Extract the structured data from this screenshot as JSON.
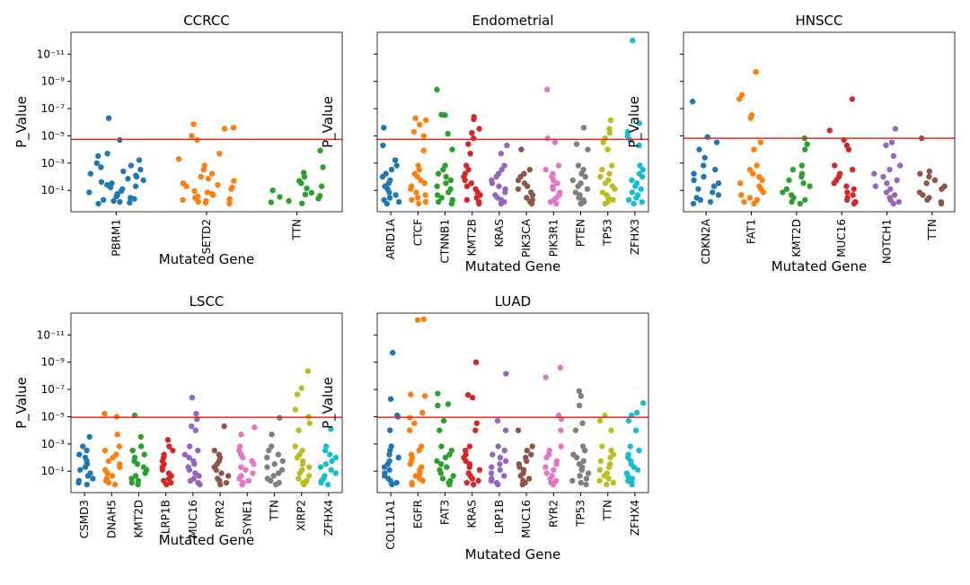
{
  "chart_data": [
    {
      "type": "strip",
      "title": "CCRCC",
      "xlabel": "Mutated Gene",
      "ylabel": "P_Value",
      "log_y": true,
      "ylim": [
        3.7,
        2.5e-13
      ],
      "yticks": [
        {
          "value": 1e-11,
          "label": "10⁻¹¹"
        },
        {
          "value": 1e-09,
          "label": "10⁻⁹"
        },
        {
          "value": 1e-07,
          "label": "10⁻⁷"
        },
        {
          "value": 1e-05,
          "label": "10⁻⁵"
        },
        {
          "value": 0.001,
          "label": "10⁻³"
        },
        {
          "value": 0.1,
          "label": "10⁻¹"
        }
      ],
      "threshold": 1.8e-05,
      "threshold_color": "#e8281f",
      "categories": [
        "PBRM1",
        "SETD2",
        "TTN"
      ],
      "colors": [
        "#1f77b4",
        "#ff7f0e",
        "#2ca02c"
      ],
      "values": [
        [
          0.95,
          0.8,
          0.7,
          0.6,
          0.5,
          0.42,
          0.35,
          0.28,
          0.22,
          0.18,
          0.14,
          0.11,
          0.08,
          0.06,
          0.05,
          0.04,
          0.03,
          0.024,
          0.018,
          0.014,
          0.01,
          0.008,
          0.006,
          0.004,
          0.003,
          0.002,
          0.0015,
          0.001,
          0.0006,
          0.0003,
          0.0002,
          2e-05,
          5e-07
        ],
        [
          0.95,
          0.8,
          0.7,
          0.6,
          0.5,
          0.42,
          0.35,
          0.28,
          0.22,
          0.18,
          0.14,
          0.11,
          0.08,
          0.06,
          0.05,
          0.04,
          0.03,
          0.02,
          0.014,
          0.01,
          0.006,
          0.003,
          0.0015,
          0.0005,
          0.0002,
          2e-05,
          1e-05,
          3e-06,
          2.5e-06,
          1.4e-06
        ],
        [
          0.9,
          0.75,
          0.6,
          0.4,
          0.3,
          0.25,
          0.2,
          0.15,
          0.1,
          0.07,
          0.05,
          0.03,
          0.02,
          0.01,
          0.005,
          0.002,
          0.00012
        ]
      ]
    },
    {
      "type": "strip",
      "title": "Endometrial",
      "xlabel": "Mutated Gene",
      "ylabel": "P_Value",
      "log_y": true,
      "ylim": [
        3.7,
        2.5e-13
      ],
      "yticks": [
        1e-11,
        1e-09,
        1e-07,
        1e-05,
        0.001,
        0.1
      ],
      "threshold": 1.8e-05,
      "threshold_color": "#e8281f",
      "categories": [
        "ARID1A",
        "CTCF",
        "CTNNB1",
        "KMT2B",
        "KRAS",
        "PIK3CA",
        "PIK3R1",
        "PTEN",
        "TP53",
        "ZFHX3"
      ],
      "colors": [
        "#1f77b4",
        "#ff7f0e",
        "#2ca02c",
        "#d62728",
        "#9467bd",
        "#8c564b",
        "#e377c2",
        "#7f7f7f",
        "#bcbd22",
        "#17becf"
      ],
      "values": [
        [
          0.95,
          0.7,
          0.5,
          0.35,
          0.22,
          0.14,
          0.08,
          0.05,
          0.03,
          0.018,
          0.01,
          0.006,
          0.003,
          0.0015,
          0.0006,
          5e-05,
          2.5e-06
        ],
        [
          0.95,
          0.7,
          0.5,
          0.35,
          0.22,
          0.14,
          0.08,
          0.05,
          0.03,
          0.018,
          0.01,
          0.006,
          0.003,
          0.0015,
          0.00012,
          1e-05,
          5e-06,
          1.5e-06,
          7e-07,
          5e-07
        ],
        [
          0.95,
          0.7,
          0.5,
          0.35,
          0.22,
          0.14,
          0.08,
          0.05,
          0.03,
          0.018,
          0.01,
          0.006,
          0.003,
          0.0015,
          0.0001,
          7e-06,
          3e-07,
          2.8e-07,
          4e-09
        ],
        [
          0.95,
          0.7,
          0.5,
          0.35,
          0.22,
          0.14,
          0.08,
          0.05,
          0.03,
          0.018,
          0.01,
          0.006,
          0.003,
          0.0015,
          0.0002,
          4e-05,
          1.5e-05,
          6e-06,
          3e-06,
          6e-07,
          4e-07
        ],
        [
          0.95,
          0.7,
          0.5,
          0.35,
          0.22,
          0.14,
          0.08,
          0.05,
          0.03,
          0.018,
          0.01,
          0.006,
          0.003,
          0.0015,
          0.0002,
          5e-05
        ],
        [
          0.95,
          0.7,
          0.5,
          0.35,
          0.22,
          0.14,
          0.08,
          0.05,
          0.03,
          0.018,
          0.01,
          0.006,
          0.003,
          0.0001
        ],
        [
          0.95,
          0.7,
          0.5,
          0.35,
          0.22,
          0.14,
          0.08,
          0.05,
          0.03,
          0.018,
          0.01,
          0.006,
          0.003,
          0.0015,
          3e-05,
          1.5e-05,
          4e-09
        ],
        [
          0.95,
          0.7,
          0.5,
          0.35,
          0.22,
          0.14,
          0.08,
          0.05,
          0.03,
          0.018,
          0.01,
          0.006,
          0.003,
          0.0015,
          0.0001,
          4e-05,
          2.5e-06
        ],
        [
          0.95,
          0.7,
          0.5,
          0.35,
          0.22,
          0.14,
          0.08,
          0.05,
          0.03,
          0.018,
          0.01,
          0.006,
          0.003,
          0.0015,
          0.0001,
          3e-05,
          1.5e-05,
          6e-06,
          3e-06,
          7e-07
        ],
        [
          0.95,
          0.7,
          0.5,
          0.35,
          0.22,
          0.14,
          0.08,
          0.05,
          0.03,
          0.018,
          0.01,
          0.006,
          0.003,
          0.0015,
          5e-05,
          2e-05,
          1e-05,
          5e-06,
          1.2e-06,
          1e-12
        ]
      ]
    },
    {
      "type": "strip",
      "title": "HNSCC",
      "xlabel": "Mutated Gene",
      "ylabel": "P_Value",
      "log_y": true,
      "ylim": [
        3.7,
        2.5e-13
      ],
      "yticks": [
        1e-11,
        1e-09,
        1e-07,
        1e-05,
        0.001,
        0.1
      ],
      "threshold": 1.5e-05,
      "threshold_color": "#e8281f",
      "categories": [
        "CDKN2A",
        "FAT1",
        "KMT2D",
        "MUC16",
        "NOTCH1",
        "TTN"
      ],
      "colors": [
        "#1f77b4",
        "#ff7f0e",
        "#2ca02c",
        "#d62728",
        "#9467bd",
        "#8c564b"
      ],
      "values": [
        [
          0.95,
          0.7,
          0.5,
          0.35,
          0.22,
          0.14,
          0.08,
          0.05,
          0.03,
          0.018,
          0.01,
          0.006,
          0.003,
          0.0015,
          0.0004,
          0.0001,
          3e-05,
          1.2e-05,
          3e-08
        ],
        [
          0.95,
          0.7,
          0.5,
          0.35,
          0.22,
          0.14,
          0.08,
          0.05,
          0.03,
          0.018,
          0.01,
          0.006,
          0.003,
          0.0015,
          0.0001,
          3e-05,
          5e-07,
          3e-07,
          2e-08,
          1e-08,
          2e-10
        ],
        [
          0.95,
          0.7,
          0.5,
          0.35,
          0.22,
          0.14,
          0.08,
          0.05,
          0.03,
          0.018,
          0.01,
          0.006,
          0.003,
          0.0015,
          0.0001,
          4e-05,
          1.5e-05
        ],
        [
          0.95,
          0.7,
          0.5,
          0.35,
          0.22,
          0.14,
          0.08,
          0.05,
          0.03,
          0.018,
          0.01,
          0.006,
          0.003,
          0.0015,
          0.0001,
          5e-05,
          2e-05,
          4e-06,
          2e-08
        ],
        [
          0.95,
          0.7,
          0.5,
          0.35,
          0.22,
          0.14,
          0.08,
          0.05,
          0.03,
          0.018,
          0.01,
          0.006,
          0.003,
          0.0015,
          0.0003,
          5e-05,
          3e-05,
          3e-06
        ],
        [
          0.95,
          0.7,
          0.5,
          0.35,
          0.22,
          0.14,
          0.08,
          0.05,
          0.03,
          0.018,
          0.01,
          0.006,
          0.004,
          1.5e-05
        ]
      ]
    },
    {
      "type": "strip",
      "title": "LSCC",
      "xlabel": "Mutated Gene",
      "ylabel": "P_Value",
      "log_y": true,
      "ylim": [
        3.7,
        2.5e-13
      ],
      "yticks": [
        {
          "value": 1e-11,
          "label": "10⁻¹¹"
        },
        {
          "value": 1e-09,
          "label": "10⁻⁹"
        },
        {
          "value": 1e-07,
          "label": "10⁻⁷"
        },
        {
          "value": 1e-05,
          "label": "10⁻⁵"
        },
        {
          "value": 0.001,
          "label": "10⁻³"
        },
        {
          "value": 0.1,
          "label": "10⁻¹"
        }
      ],
      "threshold": 1.1e-05,
      "threshold_color": "#e8281f",
      "categories": [
        "CSMD3",
        "DNAH5",
        "KMT2D",
        "LRP1B",
        "MUC16",
        "RYR2",
        "SYNE1",
        "TTN",
        "XIRP2",
        "ZFHX4"
      ],
      "colors": [
        "#1f77b4",
        "#ff7f0e",
        "#2ca02c",
        "#d62728",
        "#9467bd",
        "#8c564b",
        "#e377c2",
        "#7f7f7f",
        "#bcbd22",
        "#17becf"
      ],
      "values": [
        [
          0.95,
          0.7,
          0.5,
          0.35,
          0.22,
          0.14,
          0.08,
          0.05,
          0.03,
          0.018,
          0.01,
          0.006,
          0.003,
          0.0015,
          0.0003
        ],
        [
          0.95,
          0.7,
          0.5,
          0.35,
          0.22,
          0.14,
          0.08,
          0.05,
          0.03,
          0.018,
          0.01,
          0.006,
          0.003,
          0.0015,
          0.0002,
          1e-05,
          6e-06
        ],
        [
          0.95,
          0.7,
          0.5,
          0.35,
          0.22,
          0.14,
          0.08,
          0.05,
          0.03,
          0.018,
          0.01,
          0.006,
          0.003,
          0.0015,
          0.0003,
          8e-06
        ],
        [
          0.95,
          0.7,
          0.5,
          0.35,
          0.22,
          0.14,
          0.08,
          0.05,
          0.03,
          0.018,
          0.01,
          0.006,
          0.003,
          0.0015,
          0.0005
        ],
        [
          0.95,
          0.7,
          0.5,
          0.35,
          0.22,
          0.14,
          0.08,
          0.05,
          0.03,
          0.018,
          0.01,
          0.006,
          0.003,
          0.0015,
          0.0001,
          5e-05,
          1.5e-05,
          6e-06,
          4e-07
        ],
        [
          0.95,
          0.7,
          0.5,
          0.35,
          0.22,
          0.14,
          0.08,
          0.05,
          0.03,
          0.018,
          0.01,
          0.006,
          0.003,
          5e-05
        ],
        [
          0.95,
          0.7,
          0.5,
          0.35,
          0.22,
          0.14,
          0.08,
          0.05,
          0.03,
          0.018,
          0.01,
          0.006,
          0.003,
          0.0015,
          0.0002,
          6e-05
        ],
        [
          0.95,
          0.7,
          0.5,
          0.35,
          0.22,
          0.14,
          0.08,
          0.05,
          0.03,
          0.018,
          0.01,
          0.006,
          0.003,
          0.0015,
          0.0002,
          1.2e-05
        ],
        [
          0.95,
          0.7,
          0.5,
          0.35,
          0.22,
          0.14,
          0.08,
          0.05,
          0.03,
          0.018,
          0.01,
          0.006,
          0.003,
          0.0015,
          0.0001,
          3e-05,
          1e-05,
          3e-06,
          2.3e-07,
          8e-08,
          4.5e-09
        ],
        [
          0.95,
          0.7,
          0.5,
          0.35,
          0.22,
          0.14,
          0.08,
          0.05,
          0.03,
          0.018,
          0.01,
          0.006,
          0.003,
          0.0015,
          8e-05
        ]
      ]
    },
    {
      "type": "strip",
      "title": "LUAD",
      "xlabel": "Mutated Gene",
      "ylabel": "P_Value",
      "log_y": true,
      "ylim": [
        3.7,
        2.5e-13
      ],
      "yticks": [
        1e-11,
        1e-09,
        1e-07,
        1e-05,
        0.001,
        0.1
      ],
      "threshold": 1.1e-05,
      "threshold_color": "#e8281f",
      "categories": [
        "COL11A1",
        "EGFR",
        "FAT3",
        "KRAS",
        "LRP1B",
        "MUC16",
        "RYR2",
        "TP53",
        "TTN",
        "ZFHX4"
      ],
      "colors": [
        "#1f77b4",
        "#ff7f0e",
        "#2ca02c",
        "#d62728",
        "#9467bd",
        "#8c564b",
        "#e377c2",
        "#7f7f7f",
        "#bcbd22",
        "#17becf"
      ],
      "values": [
        [
          0.95,
          0.7,
          0.5,
          0.35,
          0.22,
          0.14,
          0.08,
          0.05,
          0.03,
          0.018,
          0.01,
          0.006,
          0.003,
          0.0015,
          0.0001,
          1e-05,
          8e-06,
          5e-07,
          2e-10
        ],
        [
          0.95,
          0.7,
          0.5,
          0.35,
          0.22,
          0.14,
          0.08,
          0.05,
          0.03,
          0.018,
          0.01,
          0.006,
          0.003,
          0.0015,
          0.0001,
          3e-05,
          1.2e-05,
          5e-06,
          3e-07,
          2.3e-07,
          8e-13,
          7e-13
        ],
        [
          0.95,
          0.7,
          0.5,
          0.35,
          0.22,
          0.14,
          0.08,
          0.05,
          0.03,
          0.018,
          0.01,
          0.006,
          0.003,
          0.0015,
          0.0001,
          2e-05,
          1.5e-06,
          1.2e-06,
          2e-07
        ],
        [
          0.95,
          0.7,
          0.5,
          0.35,
          0.22,
          0.14,
          0.08,
          0.05,
          0.03,
          0.018,
          0.01,
          0.006,
          0.003,
          0.0015,
          0.0001,
          3e-05,
          4e-07,
          2.5e-07,
          1e-09
        ],
        [
          0.95,
          0.7,
          0.5,
          0.35,
          0.22,
          0.14,
          0.08,
          0.05,
          0.03,
          0.018,
          0.01,
          0.006,
          0.003,
          0.0015,
          0.0001,
          2e-05,
          7e-09
        ],
        [
          0.95,
          0.7,
          0.5,
          0.35,
          0.22,
          0.14,
          0.08,
          0.05,
          0.03,
          0.018,
          0.01,
          0.006,
          0.003,
          0.0015,
          0.0001
        ],
        [
          0.95,
          0.7,
          0.5,
          0.35,
          0.22,
          0.14,
          0.08,
          0.05,
          0.03,
          0.018,
          0.01,
          0.006,
          0.003,
          0.0015,
          0.0001,
          1.5e-05,
          8e-06,
          1.3e-08,
          2.5e-09
        ],
        [
          0.95,
          0.7,
          0.5,
          0.35,
          0.22,
          0.14,
          0.08,
          0.05,
          0.03,
          0.018,
          0.01,
          0.006,
          0.003,
          0.0015,
          0.0001,
          3e-05,
          1.5e-06,
          3e-07,
          1.3e-07
        ],
        [
          0.95,
          0.7,
          0.5,
          0.35,
          0.22,
          0.14,
          0.08,
          0.05,
          0.03,
          0.018,
          0.01,
          0.006,
          0.003,
          0.0015,
          0.0001,
          2e-05,
          8e-06
        ],
        [
          0.95,
          0.7,
          0.5,
          0.35,
          0.22,
          0.14,
          0.08,
          0.05,
          0.03,
          0.018,
          0.01,
          0.006,
          0.003,
          0.0015,
          0.0001,
          2e-05,
          8e-06,
          5e-06,
          1e-06
        ]
      ]
    }
  ]
}
